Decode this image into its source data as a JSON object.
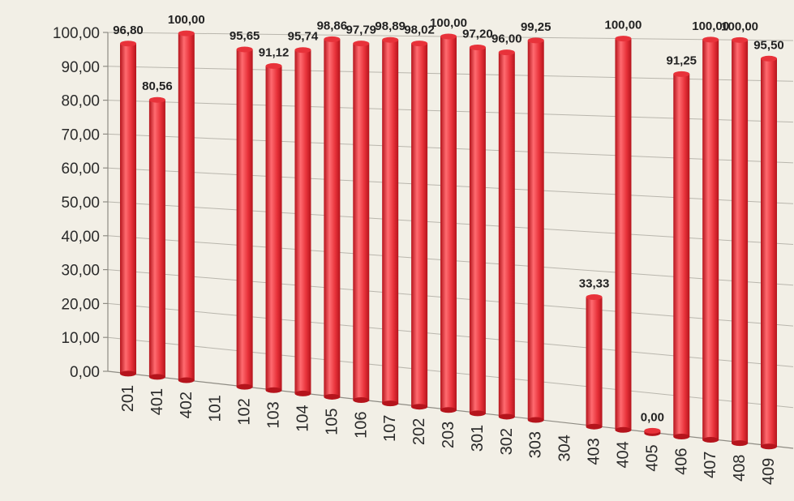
{
  "chart_data": {
    "type": "bar",
    "categories": [
      "201",
      "401",
      "402",
      "101",
      "102",
      "103",
      "104",
      "105",
      "106",
      "107",
      "202",
      "203",
      "301",
      "302",
      "303",
      "304",
      "403",
      "404",
      "405",
      "406",
      "407",
      "408",
      "409"
    ],
    "values": [
      96.8,
      80.56,
      100.0,
      null,
      95.65,
      91.12,
      95.74,
      98.86,
      97.79,
      98.89,
      98.02,
      100.0,
      97.2,
      96.0,
      99.25,
      null,
      33.33,
      100.0,
      0.0,
      91.25,
      100.0,
      100.0,
      95.5
    ],
    "data_labels": [
      "96,80",
      "80,56",
      "100,00",
      "",
      "95,65",
      "91,12",
      "95,74",
      "98,86",
      "97,79",
      "98,89",
      "98,02",
      "100,00",
      "97,20",
      "96,00",
      "99,25",
      "",
      "33,33",
      "100,00",
      "0,00",
      "91,25",
      "100,00",
      "100,00",
      "95,50"
    ],
    "y_ticks": [
      "0,00",
      "10,00",
      "20,00",
      "30,00",
      "40,00",
      "50,00",
      "60,00",
      "70,00",
      "80,00",
      "90,00",
      "100,00"
    ],
    "ylim": [
      0,
      100
    ],
    "grid": true,
    "legend": "none",
    "title": "",
    "xlabel": "",
    "ylabel": "",
    "colors": {
      "bar": "#e8323a",
      "bar_dark": "#b5141c",
      "bar_light": "#ff6b70"
    }
  }
}
